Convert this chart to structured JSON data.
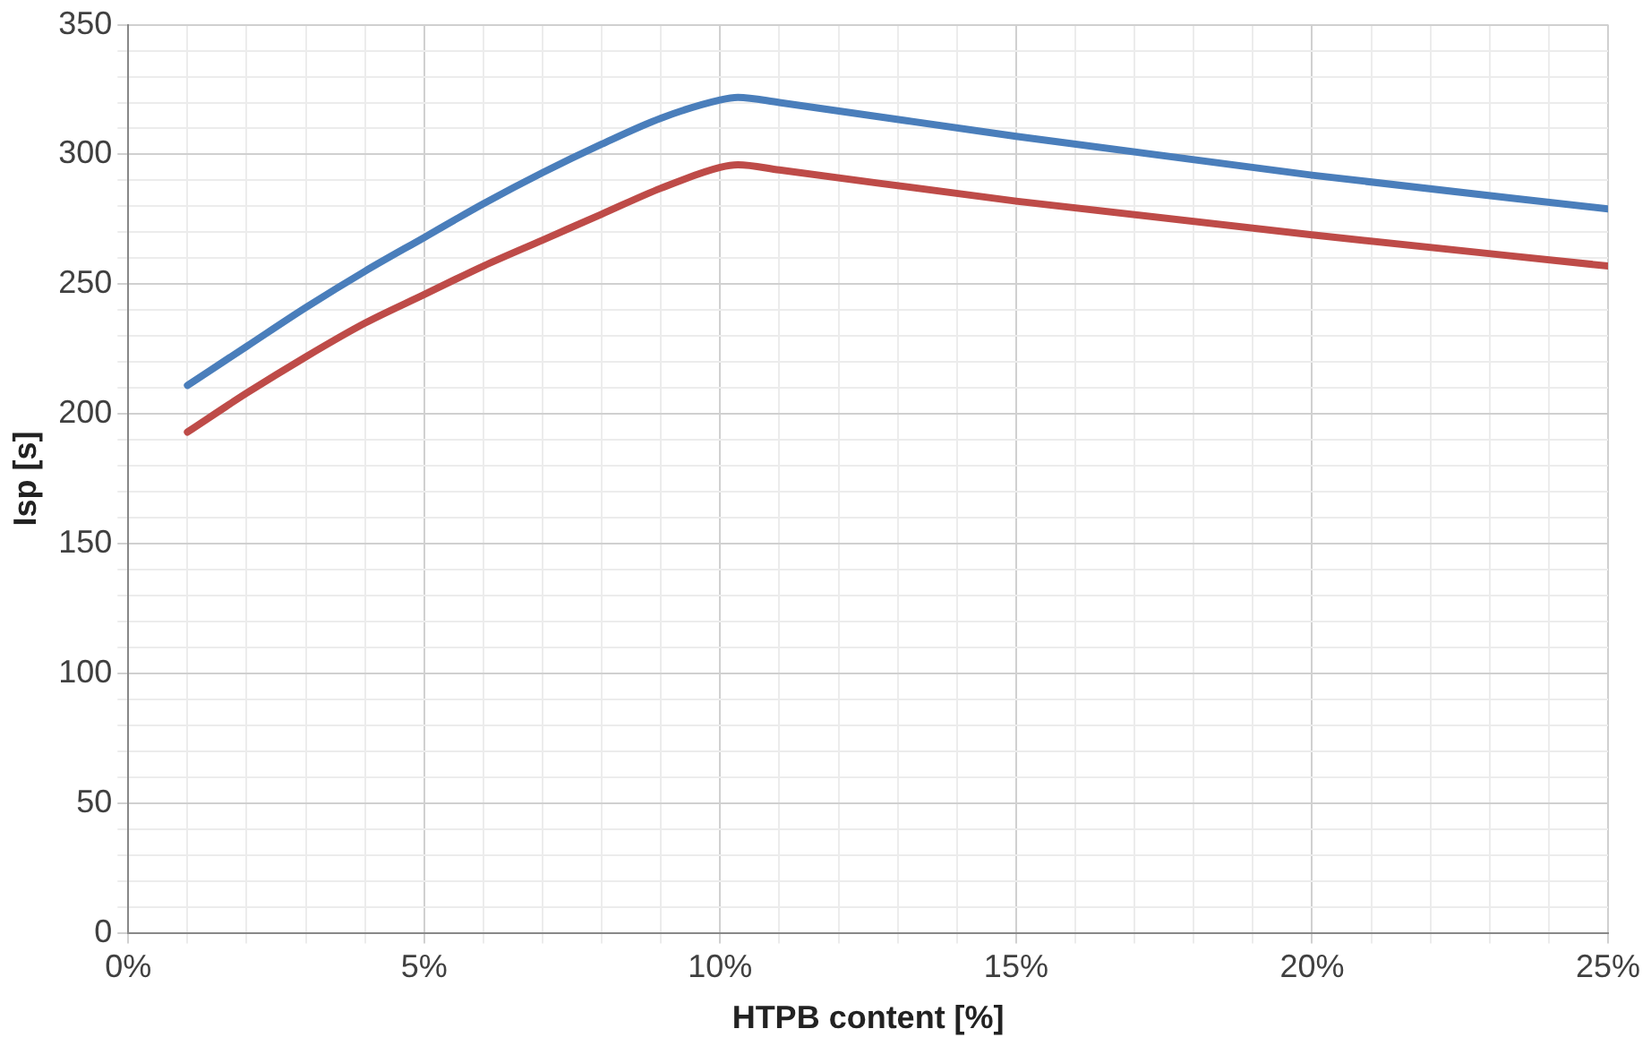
{
  "chart_data": {
    "type": "line",
    "xlabel": "HTPB content [%]",
    "ylabel": "Isp [s]",
    "xlim": [
      0,
      25
    ],
    "ylim": [
      0,
      350
    ],
    "xticks": [
      {
        "value": 0,
        "label": "0%"
      },
      {
        "value": 1,
        "label": null
      },
      {
        "value": 2,
        "label": null
      },
      {
        "value": 3,
        "label": null
      },
      {
        "value": 4,
        "label": null
      },
      {
        "value": 5,
        "label": "5%"
      },
      {
        "value": 6,
        "label": null
      },
      {
        "value": 7,
        "label": null
      },
      {
        "value": 8,
        "label": null
      },
      {
        "value": 9,
        "label": null
      },
      {
        "value": 10,
        "label": "10%"
      },
      {
        "value": 11,
        "label": null
      },
      {
        "value": 12,
        "label": null
      },
      {
        "value": 13,
        "label": null
      },
      {
        "value": 14,
        "label": null
      },
      {
        "value": 15,
        "label": "15%"
      },
      {
        "value": 16,
        "label": null
      },
      {
        "value": 17,
        "label": null
      },
      {
        "value": 18,
        "label": null
      },
      {
        "value": 19,
        "label": null
      },
      {
        "value": 20,
        "label": "20%"
      },
      {
        "value": 21,
        "label": null
      },
      {
        "value": 22,
        "label": null
      },
      {
        "value": 23,
        "label": null
      },
      {
        "value": 24,
        "label": null
      },
      {
        "value": 25,
        "label": "25%"
      }
    ],
    "yticks": [
      0,
      {
        "value": 10,
        "label": null
      },
      {
        "value": 20,
        "label": null
      },
      {
        "value": 30,
        "label": null
      },
      {
        "value": 40,
        "label": null
      },
      50,
      {
        "value": 60,
        "label": null
      },
      {
        "value": 70,
        "label": null
      },
      {
        "value": 80,
        "label": null
      },
      {
        "value": 90,
        "label": null
      },
      100,
      {
        "value": 110,
        "label": null
      },
      {
        "value": 120,
        "label": null
      },
      {
        "value": 130,
        "label": null
      },
      {
        "value": 140,
        "label": null
      },
      150,
      {
        "value": 160,
        "label": null
      },
      {
        "value": 170,
        "label": null
      },
      {
        "value": 180,
        "label": null
      },
      {
        "value": 190,
        "label": null
      },
      200,
      {
        "value": 210,
        "label": null
      },
      {
        "value": 220,
        "label": null
      },
      {
        "value": 230,
        "label": null
      },
      {
        "value": 240,
        "label": null
      },
      250,
      {
        "value": 260,
        "label": null
      },
      {
        "value": 270,
        "label": null
      },
      {
        "value": 280,
        "label": null
      },
      {
        "value": 290,
        "label": null
      },
      300,
      {
        "value": 310,
        "label": null
      },
      {
        "value": 320,
        "label": null
      },
      {
        "value": 330,
        "label": null
      },
      {
        "value": 340,
        "label": null
      },
      350
    ],
    "grid": true,
    "legend": false,
    "marker": "none",
    "line_style": "solid",
    "series": [
      {
        "color": "#4a7ebb",
        "x": [
          1,
          2,
          3,
          4,
          5,
          6,
          7,
          8,
          9,
          10,
          10.3,
          11,
          15,
          20,
          25
        ],
        "values": [
          211,
          226,
          241,
          255,
          268,
          281,
          293,
          304,
          314,
          321,
          322,
          320,
          307,
          292,
          279
        ]
      },
      {
        "color": "#be4b48",
        "x": [
          1,
          2,
          3,
          4,
          5,
          6,
          7,
          8,
          9,
          10,
          10.3,
          11,
          15,
          20,
          25
        ],
        "values": [
          193,
          208,
          222,
          235,
          246,
          257,
          267,
          277,
          287,
          295,
          296,
          294,
          282,
          269,
          257
        ]
      }
    ]
  }
}
